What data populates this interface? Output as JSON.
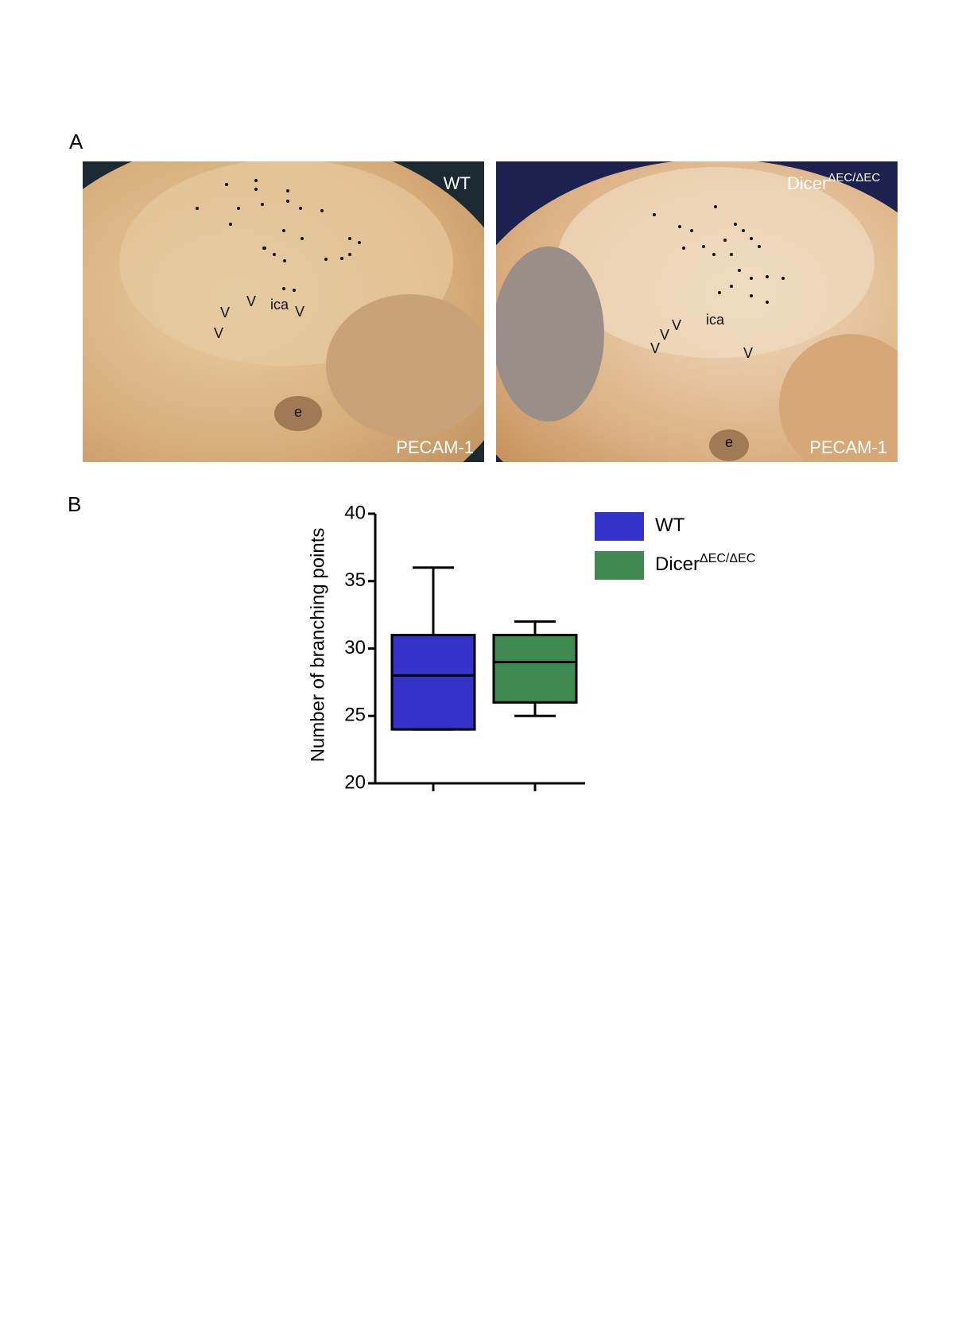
{
  "panels": {
    "a": "A",
    "b": "B"
  },
  "images": [
    {
      "title": "WT",
      "stain": "PECAM-1",
      "labels": [
        "ica",
        "V",
        "V",
        "V",
        "V",
        "e"
      ]
    },
    {
      "title": "Dicer",
      "title_superscript": "ΔEC/ΔEC",
      "stain": "PECAM-1",
      "labels": [
        "ica",
        "V",
        "V",
        "V",
        "V",
        "e"
      ]
    }
  ],
  "chart_data": {
    "type": "box",
    "y_label": "Number of branching points",
    "ylim": [
      20,
      40
    ],
    "yticks": [
      20,
      25,
      30,
      35,
      40
    ],
    "series": [
      {
        "name": "WT",
        "color": "#3333cc",
        "min": 24,
        "q1": 24,
        "median": 28,
        "q3": 31,
        "max": 36
      },
      {
        "name": "Dicer",
        "superscript": "ΔEC/ΔEC",
        "color": "#3f8a50",
        "min": 25,
        "q1": 26,
        "median": 29,
        "q3": 31,
        "max": 32
      }
    ],
    "legend": "top-right"
  }
}
